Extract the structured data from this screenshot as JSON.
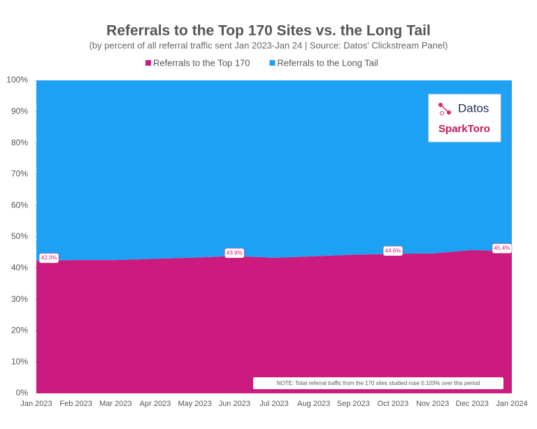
{
  "chart_data": {
    "type": "area",
    "stacked": true,
    "title": "Referrals to the Top 170 Sites vs. the Long Tail",
    "subtitle": "(by percent of all referral traffic sent Jan 2023-Jan 24 | Source: Datos' Clickstream Panel)",
    "x": [
      "Jan 2023",
      "Feb 2023",
      "Mar 2023",
      "Apr 2023",
      "May 2023",
      "Jun 2023",
      "Jul 2023",
      "Aug 2023",
      "Sep 2023",
      "Oct 2023",
      "Nov 2023",
      "Dec 2023",
      "Jan 2024"
    ],
    "series": [
      {
        "name": "Referrals to the Top 170",
        "color": "#cc1b7f",
        "values": [
          42.3,
          42.6,
          42.6,
          43.0,
          43.4,
          43.9,
          43.3,
          43.8,
          44.3,
          44.6,
          44.7,
          45.8,
          45.4
        ],
        "value_labels": [
          "42.3%",
          null,
          null,
          null,
          null,
          "43.9%",
          null,
          null,
          null,
          "44.6%",
          null,
          null,
          "45.4%"
        ]
      },
      {
        "name": "Referrals to the Long Tail",
        "color": "#1da1f2",
        "values": [
          57.7,
          57.4,
          57.4,
          57.0,
          56.6,
          56.1,
          56.7,
          56.2,
          55.7,
          55.4,
          55.3,
          54.2,
          54.6
        ]
      }
    ],
    "ylim": [
      0,
      100
    ],
    "yticks": [
      {
        "value": 0,
        "label": "0%"
      },
      {
        "value": 10,
        "label": "10%"
      },
      {
        "value": 20,
        "label": "20%"
      },
      {
        "value": 30,
        "label": "30%"
      },
      {
        "value": 40,
        "label": "40%"
      },
      {
        "value": 50,
        "label": "50%"
      },
      {
        "value": 60,
        "label": "60%"
      },
      {
        "value": 70,
        "label": "70%"
      },
      {
        "value": 80,
        "label": "80%"
      },
      {
        "value": 90,
        "label": "90%"
      },
      {
        "value": 100,
        "label": "100%"
      }
    ],
    "legend": "top",
    "annotation": "NOTE: Total referral traffic from the 170 sites studied rose 0.103% over this period",
    "logos": [
      "Datos",
      "SparkToro"
    ]
  }
}
